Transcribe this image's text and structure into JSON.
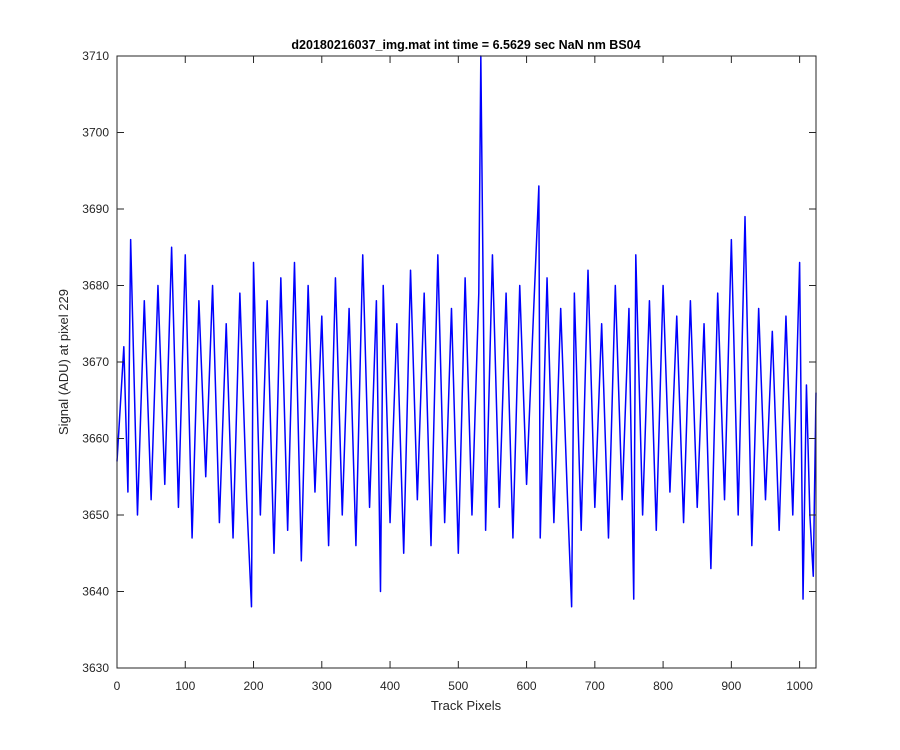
{
  "chart_data": {
    "type": "line",
    "title": "d20180216037_img.mat int time = 6.5629 sec  NaN nm BS04",
    "xlabel": "Track Pixels",
    "ylabel": "Signal (ADU) at pixel 229",
    "xlim": [
      0,
      1024
    ],
    "ylim": [
      3630,
      3710
    ],
    "xticks": [
      0,
      100,
      200,
      300,
      400,
      500,
      600,
      700,
      800,
      900,
      1000
    ],
    "yticks": [
      3630,
      3640,
      3650,
      3660,
      3670,
      3680,
      3690,
      3700,
      3710
    ],
    "grid": false,
    "legend": "none",
    "series": [
      {
        "color": "#0000ff",
        "x": [
          0,
          10,
          16,
          20,
          30,
          40,
          50,
          60,
          70,
          80,
          90,
          100,
          110,
          120,
          130,
          140,
          150,
          160,
          170,
          180,
          190,
          197,
          200,
          210,
          220,
          230,
          240,
          250,
          260,
          270,
          280,
          290,
          300,
          310,
          320,
          330,
          340,
          350,
          360,
          370,
          380,
          386,
          390,
          400,
          410,
          420,
          430,
          440,
          450,
          460,
          470,
          480,
          490,
          500,
          510,
          520,
          530,
          533,
          540,
          550,
          560,
          570,
          580,
          590,
          600,
          610,
          618,
          620,
          630,
          640,
          650,
          660,
          666,
          670,
          680,
          690,
          700,
          710,
          720,
          730,
          740,
          750,
          757,
          760,
          770,
          780,
          790,
          800,
          810,
          820,
          830,
          840,
          850,
          860,
          870,
          880,
          890,
          900,
          910,
          920,
          930,
          940,
          950,
          960,
          970,
          980,
          990,
          1000,
          1005,
          1010,
          1015,
          1020,
          1024
        ],
        "y": [
          3657,
          3672,
          3653,
          3686,
          3650,
          3678,
          3652,
          3680,
          3654,
          3685,
          3651,
          3684,
          3647,
          3678,
          3655,
          3680,
          3649,
          3675,
          3647,
          3679,
          3652,
          3638,
          3683,
          3650,
          3678,
          3645,
          3681,
          3648,
          3683,
          3644,
          3680,
          3653,
          3676,
          3646,
          3681,
          3650,
          3677,
          3646,
          3684,
          3651,
          3678,
          3640,
          3680,
          3649,
          3675,
          3645,
          3682,
          3652,
          3679,
          3646,
          3684,
          3649,
          3677,
          3645,
          3681,
          3650,
          3679,
          3710,
          3648,
          3684,
          3651,
          3679,
          3647,
          3680,
          3654,
          3676,
          3693,
          3647,
          3681,
          3649,
          3677,
          3652,
          3638,
          3679,
          3648,
          3682,
          3651,
          3675,
          3647,
          3680,
          3652,
          3677,
          3639,
          3684,
          3650,
          3678,
          3648,
          3680,
          3653,
          3676,
          3649,
          3678,
          3651,
          3675,
          3643,
          3679,
          3652,
          3686,
          3650,
          3689,
          3646,
          3677,
          3652,
          3674,
          3648,
          3676,
          3650,
          3683,
          3639,
          3667,
          3650,
          3642,
          3666
        ]
      }
    ]
  }
}
